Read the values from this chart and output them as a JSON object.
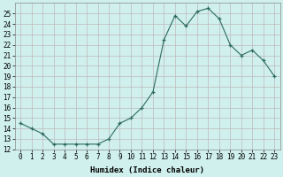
{
  "x": [
    0,
    1,
    2,
    3,
    4,
    5,
    6,
    7,
    8,
    9,
    10,
    11,
    12,
    13,
    14,
    15,
    16,
    17,
    18,
    19,
    20,
    21,
    22,
    23
  ],
  "y": [
    14.5,
    14.0,
    13.5,
    12.5,
    12.5,
    12.5,
    12.5,
    12.5,
    13.0,
    14.5,
    15.0,
    16.0,
    17.5,
    22.5,
    24.8,
    23.8,
    25.2,
    25.5,
    24.5,
    22.0,
    21.0,
    21.5,
    20.5,
    19.0
  ],
  "xlabel": "Humidex (Indice chaleur)",
  "ylim": [
    12,
    26
  ],
  "xlim": [
    -0.5,
    23.5
  ],
  "yticks": [
    12,
    13,
    14,
    15,
    16,
    17,
    18,
    19,
    20,
    21,
    22,
    23,
    24,
    25
  ],
  "xticks": [
    0,
    1,
    2,
    3,
    4,
    5,
    6,
    7,
    8,
    9,
    10,
    11,
    12,
    13,
    14,
    15,
    16,
    17,
    18,
    19,
    20,
    21,
    22,
    23
  ],
  "line_color": "#2e6b5e",
  "marker_color": "#2e6b5e",
  "bg_color": "#cff0ed",
  "grid_color": "#c0b8b8",
  "label_fontsize": 6.5,
  "tick_fontsize": 5.5
}
